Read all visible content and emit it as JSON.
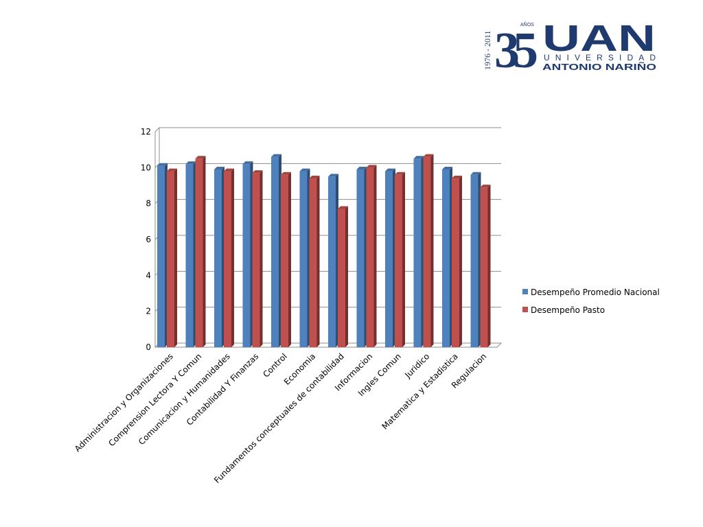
{
  "logo": {
    "years": "1976 - 2011",
    "number": "35",
    "anos": "AÑOS",
    "acronym": "UAN",
    "line1": "UNIVERSIDAD",
    "line2": "ANTONIO NARIÑO",
    "color": "#1f3a6e"
  },
  "chart_data": {
    "type": "bar",
    "categories": [
      "Administracion y Organizaciones",
      "Comprension Lectora Y Comun",
      "Comunicacion y Humanidades",
      "Contabilidad Y Finanzas",
      "Control",
      "Economia",
      "Fundamentos conceptuales de contabilidad",
      "Informacion",
      "Ingles Comun",
      "Juridico",
      "Matematica y Estadistica",
      "Regulacion"
    ],
    "series": [
      {
        "name": "Desempeño Promedio Nacional",
        "color": "#4f81bd",
        "values": [
          10.1,
          10.2,
          9.9,
          10.2,
          10.6,
          9.8,
          9.5,
          9.9,
          9.8,
          10.5,
          9.9,
          9.6
        ]
      },
      {
        "name": "Desempeño Pasto",
        "color": "#c0504d",
        "values": [
          9.8,
          10.5,
          9.8,
          9.7,
          9.6,
          9.4,
          7.7,
          10.0,
          9.6,
          10.6,
          9.4,
          8.9
        ]
      }
    ],
    "ylim": [
      0,
      12
    ],
    "yticks": [
      0,
      2,
      4,
      6,
      8,
      10,
      12
    ],
    "grid": true,
    "legend_position": "right",
    "style": "3d-clustered"
  }
}
